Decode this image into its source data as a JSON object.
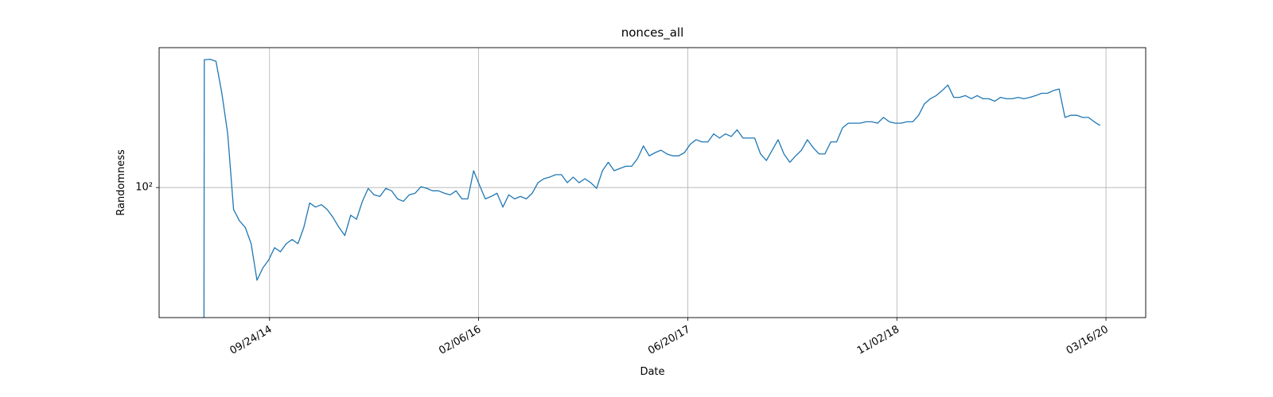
{
  "chart_data": {
    "type": "line",
    "title": "nonces_all",
    "x_label": "Date",
    "y_label": "Randomness",
    "log_y": true,
    "grid": true,
    "color": "#1f77b4",
    "xlim": [
      "2014-01-03",
      "2020-06-19"
    ],
    "xticks": [
      {
        "value": "2014-09-24",
        "label": "09/24/14"
      },
      {
        "value": "2016-02-06",
        "label": "02/06/16"
      },
      {
        "value": "2017-06-20",
        "label": "06/20/17"
      },
      {
        "value": "2018-11-02",
        "label": "11/02/18"
      },
      {
        "value": "2020-03-16",
        "label": "03/16/20"
      }
    ],
    "ylim": [
      24.4,
      456
    ],
    "yticks": [
      {
        "value": 100,
        "label": "10²"
      }
    ],
    "x": [
      "2014-04-20",
      "2014-04-21",
      "2014-05-05",
      "2014-05-19",
      "2014-06-02",
      "2014-06-16",
      "2014-06-30",
      "2014-07-14",
      "2014-07-28",
      "2014-08-11",
      "2014-08-25",
      "2014-09-08",
      "2014-09-22",
      "2014-10-06",
      "2014-10-20",
      "2014-11-03",
      "2014-11-17",
      "2014-12-01",
      "2014-12-15",
      "2014-12-29",
      "2015-01-12",
      "2015-01-26",
      "2015-02-09",
      "2015-02-23",
      "2015-03-09",
      "2015-03-23",
      "2015-04-06",
      "2015-04-20",
      "2015-05-04",
      "2015-05-18",
      "2015-06-01",
      "2015-06-15",
      "2015-06-29",
      "2015-07-13",
      "2015-07-27",
      "2015-08-10",
      "2015-08-24",
      "2015-09-07",
      "2015-09-21",
      "2015-10-05",
      "2015-10-19",
      "2015-11-02",
      "2015-11-16",
      "2015-11-30",
      "2015-12-14",
      "2015-12-28",
      "2016-01-11",
      "2016-01-25",
      "2016-02-08",
      "2016-02-22",
      "2016-03-07",
      "2016-03-21",
      "2016-04-04",
      "2016-04-18",
      "2016-05-02",
      "2016-05-16",
      "2016-05-30",
      "2016-06-13",
      "2016-06-27",
      "2016-07-11",
      "2016-07-25",
      "2016-08-08",
      "2016-08-22",
      "2016-09-05",
      "2016-09-19",
      "2016-10-03",
      "2016-10-17",
      "2016-10-31",
      "2016-11-14",
      "2016-11-28",
      "2016-12-12",
      "2016-12-26",
      "2017-01-09",
      "2017-01-23",
      "2017-02-06",
      "2017-02-20",
      "2017-03-06",
      "2017-03-20",
      "2017-04-03",
      "2017-04-17",
      "2017-05-01",
      "2017-05-15",
      "2017-05-29",
      "2017-06-12",
      "2017-06-26",
      "2017-07-10",
      "2017-07-24",
      "2017-08-07",
      "2017-08-21",
      "2017-09-04",
      "2017-09-18",
      "2017-10-02",
      "2017-10-16",
      "2017-10-30",
      "2017-11-13",
      "2017-11-27",
      "2017-12-11",
      "2017-12-25",
      "2018-01-08",
      "2018-01-22",
      "2018-02-05",
      "2018-02-19",
      "2018-03-05",
      "2018-03-19",
      "2018-04-02",
      "2018-04-16",
      "2018-04-30",
      "2018-05-14",
      "2018-05-28",
      "2018-06-11",
      "2018-06-25",
      "2018-07-09",
      "2018-07-23",
      "2018-08-06",
      "2018-08-20",
      "2018-09-03",
      "2018-09-17",
      "2018-10-01",
      "2018-10-15",
      "2018-10-29",
      "2018-11-12",
      "2018-11-26",
      "2018-12-10",
      "2018-12-24",
      "2019-01-07",
      "2019-01-21",
      "2019-02-04",
      "2019-02-18",
      "2019-03-04",
      "2019-03-18",
      "2019-04-01",
      "2019-04-15",
      "2019-04-29",
      "2019-05-13",
      "2019-05-27",
      "2019-06-10",
      "2019-06-24",
      "2019-07-08",
      "2019-07-22",
      "2019-08-05",
      "2019-08-19",
      "2019-09-02",
      "2019-09-16",
      "2019-09-30",
      "2019-10-14",
      "2019-10-28",
      "2019-11-11",
      "2019-11-25",
      "2019-12-09",
      "2019-12-23",
      "2020-01-06",
      "2020-01-20",
      "2020-02-03",
      "2020-02-17",
      "2020-03-02"
    ],
    "values": [
      0,
      400,
      402,
      393,
      278,
      179,
      78.8,
      69.7,
      64.9,
      54.4,
      36.6,
      41.8,
      45.6,
      52.1,
      49.8,
      54.4,
      56.9,
      54.4,
      64.9,
      84.6,
      80.9,
      83.1,
      78.8,
      72.2,
      64.9,
      59.4,
      74.1,
      70.9,
      86.1,
      99.1,
      92.4,
      90.8,
      99.1,
      96.5,
      88.4,
      86.1,
      92.4,
      94.0,
      100.9,
      99.1,
      96.5,
      96.5,
      94.0,
      92.4,
      96.5,
      88.4,
      88.4,
      120,
      102.7,
      88.4,
      90.8,
      94.0,
      80.9,
      92.4,
      88.4,
      90.8,
      88.4,
      94.0,
      105.4,
      110,
      112,
      115,
      115,
      105.4,
      112,
      105.4,
      110,
      105.4,
      99.1,
      120,
      131.5,
      120,
      123,
      126,
      126,
      137,
      157,
      141,
      146,
      150,
      144,
      141,
      141,
      146,
      160,
      168,
      164,
      164,
      179,
      171,
      179,
      174,
      187,
      171,
      171,
      171,
      144,
      134,
      150,
      168,
      144,
      131.5,
      141,
      150,
      168,
      154,
      144,
      144,
      164,
      164,
      191,
      201,
      201,
      201,
      204,
      204,
      201,
      214,
      204,
      201,
      201,
      204,
      204,
      219,
      248,
      262,
      271,
      286,
      304,
      266,
      266,
      271,
      262,
      271,
      262,
      262,
      255,
      266,
      262,
      262,
      266,
      262,
      266,
      271,
      278,
      278,
      286,
      291,
      214,
      219,
      219,
      214,
      214,
      204,
      196
    ]
  }
}
